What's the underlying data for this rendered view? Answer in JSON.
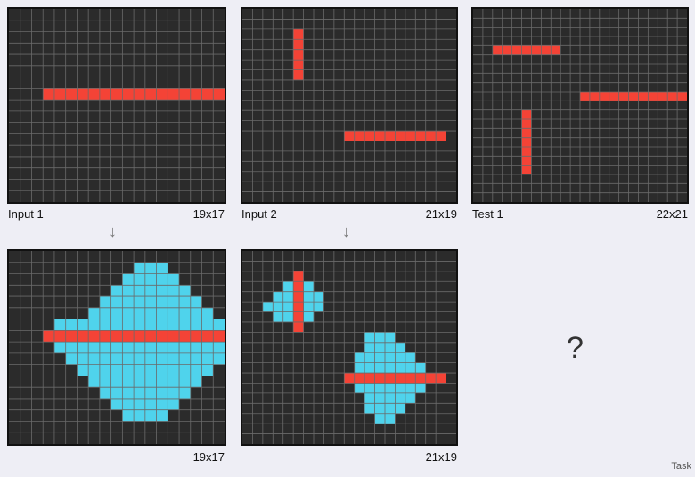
{
  "colors": {
    "background": "#2b2b2b",
    "grid_line": "#6a6a6a",
    "red": "#f44336",
    "cyan": "#4fd3ec"
  },
  "panels": {
    "input1": {
      "label": "Input 1",
      "dims": "19x17",
      "cols": 19,
      "rows": 17,
      "cells": [
        {
          "color": "red",
          "row": 7,
          "c0": 3,
          "c1": 21
        }
      ]
    },
    "output1": {
      "dims": "19x17",
      "cols": 19,
      "rows": 17,
      "cells": [
        {
          "color": "cyan",
          "row": 1,
          "c0": 11,
          "c1": 13
        },
        {
          "color": "cyan",
          "row": 2,
          "c0": 10,
          "c1": 14
        },
        {
          "color": "cyan",
          "row": 3,
          "c0": 9,
          "c1": 15
        },
        {
          "color": "cyan",
          "row": 4,
          "c0": 8,
          "c1": 16
        },
        {
          "color": "cyan",
          "row": 5,
          "c0": 7,
          "c1": 17
        },
        {
          "color": "cyan",
          "row": 6,
          "c0": 4,
          "c1": 19
        },
        {
          "color": "cyan",
          "row": 8,
          "c0": 4,
          "c1": 19
        },
        {
          "color": "cyan",
          "row": 9,
          "c0": 5,
          "c1": 18
        },
        {
          "color": "cyan",
          "row": 10,
          "c0": 6,
          "c1": 17
        },
        {
          "color": "cyan",
          "row": 11,
          "c0": 7,
          "c1": 16
        },
        {
          "color": "cyan",
          "row": 12,
          "c0": 8,
          "c1": 15
        },
        {
          "color": "cyan",
          "row": 13,
          "c0": 9,
          "c1": 14
        },
        {
          "color": "cyan",
          "row": 14,
          "c0": 10,
          "c1": 13
        },
        {
          "color": "red",
          "row": 7,
          "c0": 3,
          "c1": 21
        }
      ]
    },
    "input2": {
      "label": "Input 2",
      "dims": "21x19",
      "cols": 21,
      "rows": 19,
      "cells": [
        {
          "color": "red",
          "col": 5,
          "r0": 2,
          "r1": 6
        },
        {
          "color": "red",
          "row": 12,
          "c0": 10,
          "c1": 19
        }
      ]
    },
    "output2": {
      "dims": "21x19",
      "cols": 21,
      "rows": 19,
      "cells": [
        {
          "color": "cyan",
          "row": 3,
          "c0": 4,
          "c1": 6
        },
        {
          "color": "cyan",
          "row": 4,
          "c0": 3,
          "c1": 7
        },
        {
          "color": "cyan",
          "row": 5,
          "c0": 2,
          "c1": 7
        },
        {
          "color": "cyan",
          "row": 6,
          "c0": 3,
          "c1": 6
        },
        {
          "color": "red",
          "col": 5,
          "r0": 2,
          "r1": 7
        },
        {
          "color": "cyan",
          "row": 8,
          "c0": 12,
          "c1": 14
        },
        {
          "color": "cyan",
          "row": 9,
          "c0": 12,
          "c1": 15
        },
        {
          "color": "cyan",
          "row": 10,
          "c0": 11,
          "c1": 16
        },
        {
          "color": "cyan",
          "row": 11,
          "c0": 11,
          "c1": 17
        },
        {
          "color": "cyan",
          "row": 13,
          "c0": 11,
          "c1": 17
        },
        {
          "color": "cyan",
          "row": 14,
          "c0": 12,
          "c1": 16
        },
        {
          "color": "cyan",
          "row": 15,
          "c0": 12,
          "c1": 15
        },
        {
          "color": "cyan",
          "row": 16,
          "c0": 13,
          "c1": 14
        },
        {
          "color": "red",
          "row": 12,
          "c0": 10,
          "c1": 19
        }
      ]
    },
    "test1": {
      "label": "Test 1",
      "dims": "22x21",
      "cols": 22,
      "rows": 21,
      "cells": [
        {
          "color": "red",
          "row": 4,
          "c0": 2,
          "c1": 8
        },
        {
          "color": "red",
          "row": 9,
          "c0": 11,
          "c1": 21
        },
        {
          "color": "red",
          "col": 5,
          "r0": 11,
          "r1": 17
        }
      ]
    }
  },
  "arrows": [
    "↓",
    "↓"
  ],
  "unknown": "?",
  "footer": "Task"
}
